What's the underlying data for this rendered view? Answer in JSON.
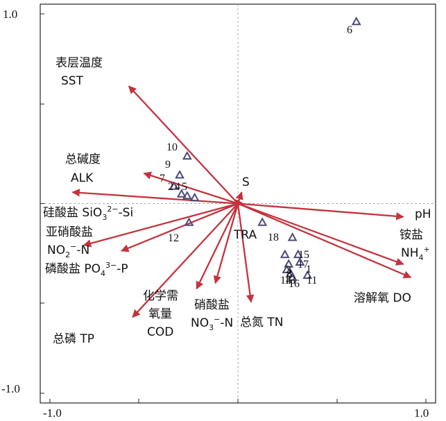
{
  "chart_data": {
    "type": "scatter",
    "title": "",
    "xlabel": "",
    "ylabel": "",
    "xlim": [
      -1.0,
      1.0
    ],
    "ylim": [
      -1.0,
      1.0
    ],
    "grid": false,
    "x_tick_labels": [
      "-1.0",
      "1.0"
    ],
    "y_tick_labels": [
      "1.0",
      "-1.0"
    ],
    "arrow_color": "#c4333d",
    "site_color": "#4a4a78",
    "environmental_variables": [
      {
        "id": "sst",
        "lines": [
          "表层温度",
          "SST"
        ],
        "x": -0.58,
        "y": 0.62
      },
      {
        "id": "alk",
        "lines": [
          "总碱度",
          "ALK"
        ],
        "x": -0.5,
        "y": 0.16
      },
      {
        "id": "sio3",
        "lines": [
          "硅酸盐 SiO3²⁻-Si"
        ],
        "x": -0.88,
        "y": 0.06
      },
      {
        "id": "no2",
        "lines": [
          "亚硝酸盐",
          "NO2⁻-N"
        ],
        "x": -0.82,
        "y": -0.22
      },
      {
        "id": "po4",
        "lines": [
          "磷酸盐 PO4³⁻-P"
        ],
        "x": -0.62,
        "y": -0.25
      },
      {
        "id": "tp",
        "lines": [
          "总磷 TP"
        ],
        "x": -0.56,
        "y": -0.6
      },
      {
        "id": "cod",
        "lines": [
          "化学需",
          "氧量",
          "COD"
        ],
        "x": -0.22,
        "y": -0.45
      },
      {
        "id": "no3",
        "lines": [
          "硝酸盐",
          "NO3⁻-N"
        ],
        "x": -0.12,
        "y": -0.42
      },
      {
        "id": "tn",
        "lines": [
          "总氮 TN"
        ],
        "x": 0.07,
        "y": -0.52
      },
      {
        "id": "s",
        "lines": [
          "S"
        ],
        "x": 0.02,
        "y": 0.06
      },
      {
        "id": "tra",
        "lines": [
          "TRA"
        ],
        "x": -0.01,
        "y": -0.02
      },
      {
        "id": "ph",
        "lines": [
          "pH"
        ],
        "x": 0.88,
        "y": -0.07
      },
      {
        "id": "nh4",
        "lines": [
          "铵盐",
          "NH4⁺"
        ],
        "x": 0.88,
        "y": -0.32
      },
      {
        "id": "do",
        "lines": [
          "溶解氧 DO"
        ],
        "x": 0.92,
        "y": -0.39
      }
    ],
    "sites": [
      {
        "label": "6",
        "x": 0.63,
        "y": 0.96
      },
      {
        "label": "10",
        "x": -0.27,
        "y": 0.25
      },
      {
        "label": "9",
        "x": -0.31,
        "y": 0.15
      },
      {
        "label": "7",
        "x": -0.34,
        "y": 0.09
      },
      {
        "label": "2",
        "x": -0.3,
        "y": 0.05
      },
      {
        "label": "4",
        "x": -0.27,
        "y": 0.04
      },
      {
        "label": "5",
        "x": -0.23,
        "y": 0.03
      },
      {
        "label": "12",
        "x": -0.26,
        "y": -0.1
      },
      {
        "label": "18",
        "x": 0.13,
        "y": -0.1
      },
      {
        "label": "15",
        "x": 0.29,
        "y": -0.18
      },
      {
        "label": "17",
        "x": 0.32,
        "y": -0.27
      },
      {
        "label": "3",
        "x": 0.25,
        "y": -0.27
      },
      {
        "label": "8",
        "x": 0.27,
        "y": -0.32
      },
      {
        "label": "1",
        "x": 0.33,
        "y": -0.31
      },
      {
        "label": "14",
        "x": 0.26,
        "y": -0.35
      },
      {
        "label": "13",
        "x": 0.28,
        "y": -0.37
      },
      {
        "label": "16",
        "x": 0.29,
        "y": -0.39
      },
      {
        "label": "11",
        "x": 0.37,
        "y": -0.38
      }
    ]
  }
}
